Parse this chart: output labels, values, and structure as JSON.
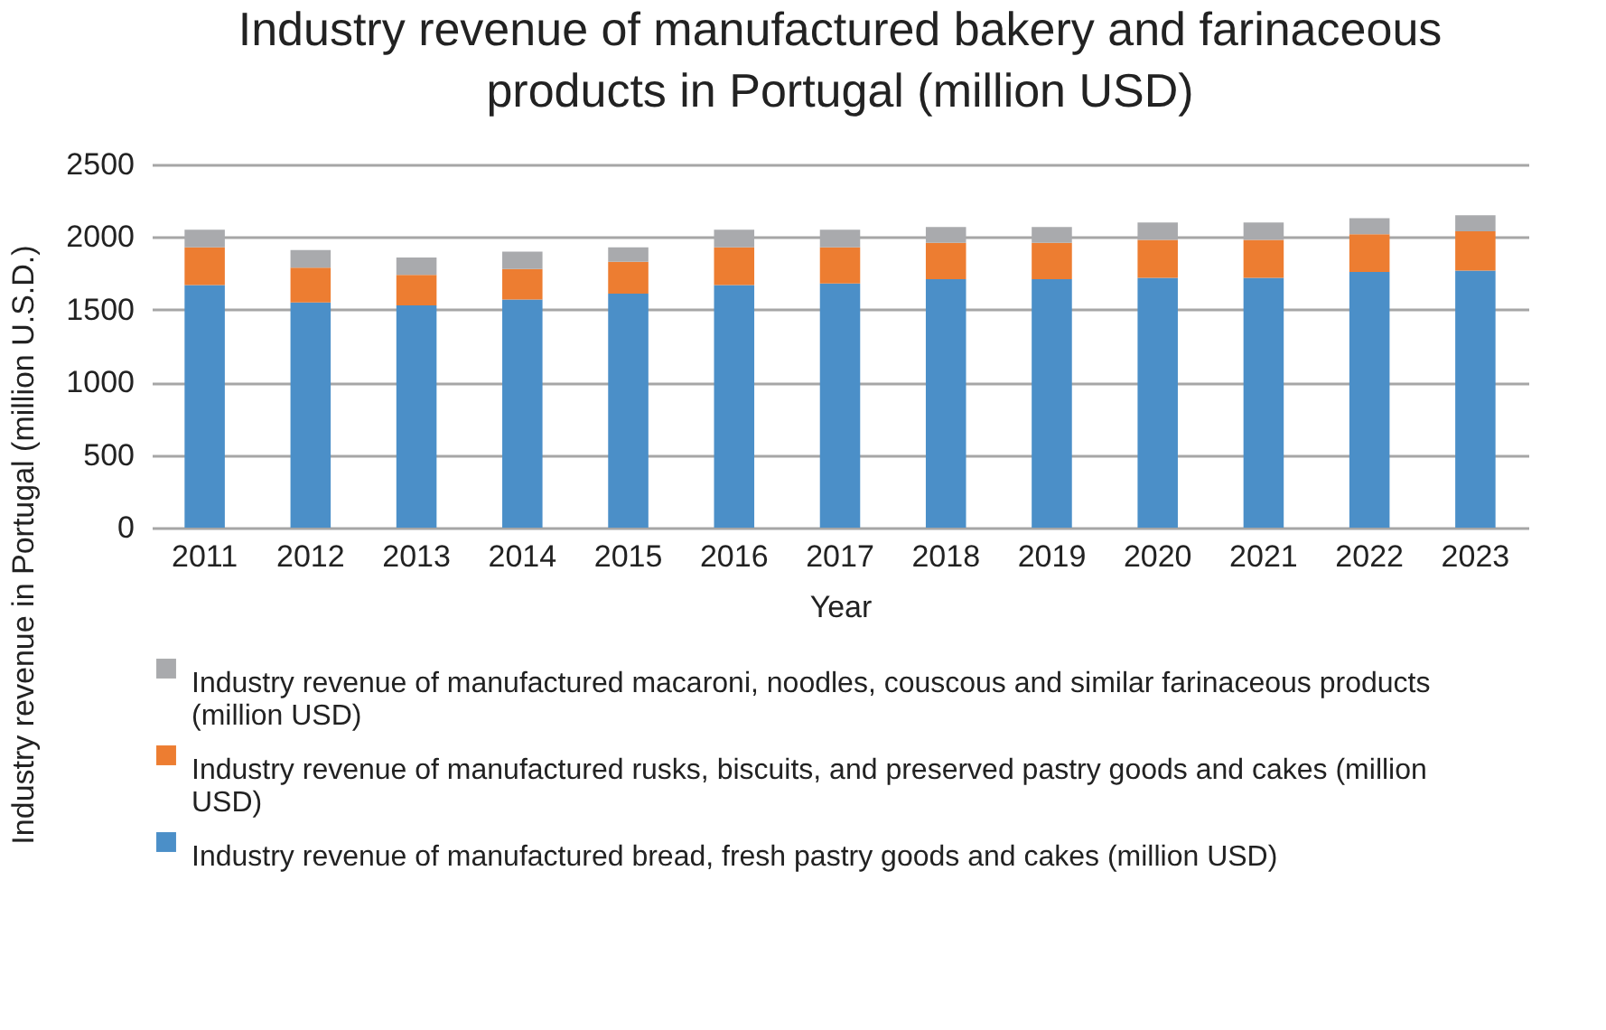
{
  "chart_data": {
    "type": "bar",
    "stacked": true,
    "title": "Industry revenue of manufactured bakery and farinaceous products in Portugal (million USD)",
    "xlabel": "Year",
    "ylabel": "Industry revenue in Portugal (million U.S.D.)",
    "categories": [
      "2011",
      "2012",
      "2013",
      "2014",
      "2015",
      "2016",
      "2017",
      "2018",
      "2019",
      "2020",
      "2021",
      "2022",
      "2023"
    ],
    "series": [
      {
        "name": "Industry revenue of manufactured bread, fresh pastry goods and cakes (million USD)",
        "color": "#4b8fc8",
        "values": [
          1670,
          1550,
          1530,
          1570,
          1610,
          1670,
          1680,
          1710,
          1710,
          1720,
          1720,
          1760,
          1770
        ]
      },
      {
        "name": "Industry revenue of manufactured rusks, biscuits, and preserved pastry goods and cakes (million USD)",
        "color": "#ed7d31",
        "values": [
          260,
          240,
          210,
          210,
          220,
          260,
          250,
          250,
          250,
          260,
          260,
          260,
          270
        ]
      },
      {
        "name": "Industry revenue of manufactured macaroni, noodles, couscous and similar farinaceous products (million USD)",
        "color": "#a9aaad",
        "values": [
          120,
          120,
          120,
          120,
          100,
          120,
          120,
          110,
          110,
          120,
          120,
          110,
          110
        ]
      }
    ],
    "ylim": [
      0,
      2500
    ],
    "yticks": [
      0,
      500,
      1000,
      1500,
      2000,
      2500
    ],
    "grid": "y",
    "legend": "bottom"
  }
}
